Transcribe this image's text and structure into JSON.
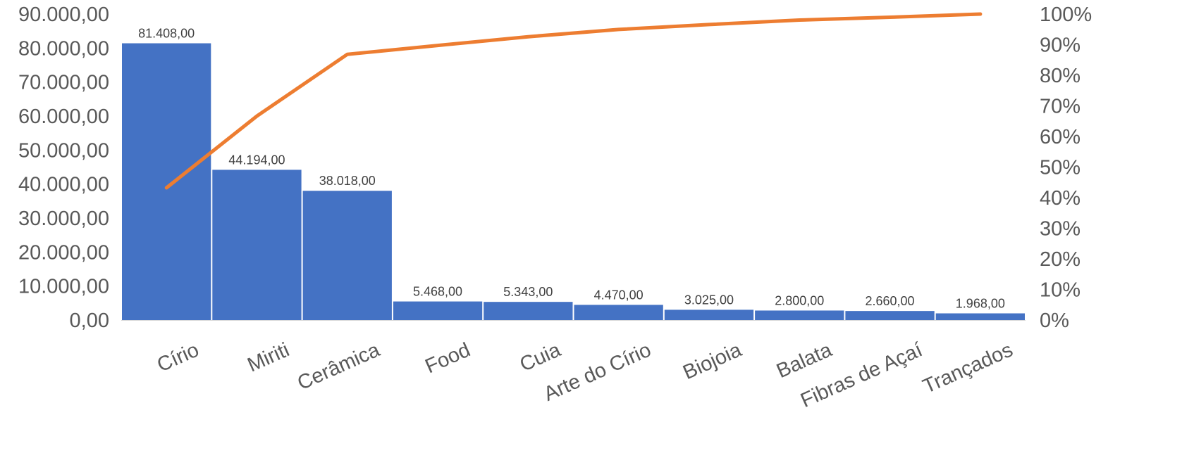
{
  "chart_data": {
    "type": "bar",
    "title": "",
    "xlabel": "",
    "ylabel": "",
    "categories": [
      "Círio",
      "Miriti",
      "Cerâmica",
      "Food",
      "Cuia",
      "Arte do Círio",
      "Biojoia",
      "Balata",
      "Fibras de Açaí",
      "Trançados"
    ],
    "series": [
      {
        "type": "bar",
        "axis": "left",
        "values": [
          81408,
          44194,
          38018,
          5468,
          5343,
          4470,
          3025,
          2800,
          2660,
          1968
        ],
        "labels": [
          "81.408,00",
          "44.194,00",
          "38.018,00",
          "5.468,00",
          "5.343,00",
          "4.470,00",
          "3.025,00",
          "2.800,00",
          "2.660,00",
          "1.968,00"
        ],
        "color": "#4472C4"
      },
      {
        "type": "line",
        "axis": "right",
        "values": [
          0.4321,
          0.6667,
          0.8685,
          0.8975,
          0.9259,
          0.9496,
          0.9657,
          0.9805,
          0.9896,
          1.0
        ],
        "color": "#ED7D31"
      }
    ],
    "ylim": [
      0,
      90000
    ],
    "y2lim": [
      0,
      1
    ],
    "yticks": [
      "0,00",
      "10.000,00",
      "20.000,00",
      "30.000,00",
      "40.000,00",
      "50.000,00",
      "60.000,00",
      "70.000,00",
      "80.000,00",
      "90.000,00"
    ],
    "y2ticks": [
      "0%",
      "10%",
      "20%",
      "30%",
      "40%",
      "50%",
      "60%",
      "70%",
      "80%",
      "90%",
      "100%"
    ],
    "grid": false,
    "legend": "none"
  }
}
